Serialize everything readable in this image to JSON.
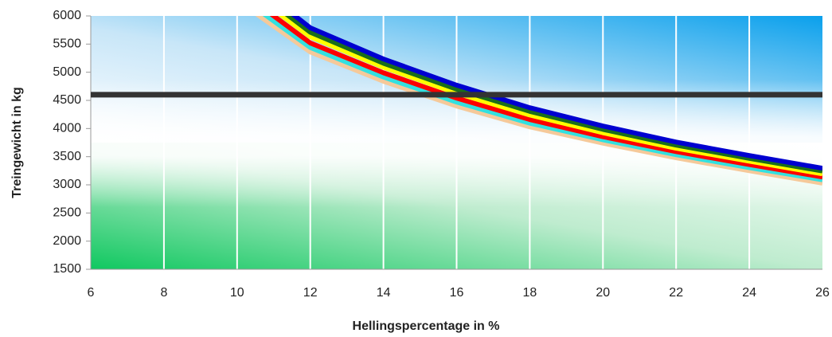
{
  "chart_data": {
    "type": "line",
    "x_label": "Hellingspercentage in %",
    "y_label": "Treingewicht in kg",
    "xlim": [
      6,
      26
    ],
    "xticks": [
      6,
      8,
      10,
      12,
      14,
      16,
      18,
      20,
      22,
      24,
      26
    ],
    "ylim": [
      1500,
      6000
    ],
    "yticks": [
      1500,
      2000,
      2500,
      3000,
      3500,
      4000,
      4500,
      5000,
      5500,
      6000
    ],
    "grid": true,
    "series": [
      {
        "color": "#f5c99a",
        "x": [
          10,
          12,
          14,
          16,
          18,
          20,
          22,
          24,
          26
        ],
        "values": [
          6280,
          5360,
          4840,
          4400,
          4030,
          3740,
          3480,
          3250,
          3030
        ]
      },
      {
        "color": "#33e0e0",
        "x": [
          10,
          12,
          14,
          16,
          18,
          20,
          22,
          24,
          26
        ],
        "values": [
          6380,
          5440,
          4915,
          4470,
          4095,
          3800,
          3535,
          3305,
          3090
        ]
      },
      {
        "color": "#ff0000",
        "x": [
          10,
          12,
          14,
          16,
          18,
          20,
          22,
          24,
          26
        ],
        "values": [
          6480,
          5520,
          4990,
          4540,
          4160,
          3855,
          3590,
          3360,
          3140
        ]
      },
      {
        "color": "#ffff00",
        "x": [
          10,
          12,
          14,
          16,
          18,
          20,
          22,
          24,
          26
        ],
        "values": [
          6600,
          5630,
          5090,
          4630,
          4240,
          3925,
          3650,
          3420,
          3195
        ]
      },
      {
        "color": "#1a6e1a",
        "x": [
          10,
          12,
          14,
          16,
          18,
          20,
          22,
          24,
          26
        ],
        "values": [
          6700,
          5710,
          5160,
          4700,
          4305,
          3985,
          3705,
          3470,
          3245
        ]
      },
      {
        "color": "#0000d0",
        "x": [
          10,
          12,
          14,
          16,
          18,
          20,
          22,
          24,
          26
        ],
        "values": [
          6800,
          5790,
          5235,
          4770,
          4370,
          4045,
          3760,
          3520,
          3295
        ]
      },
      {
        "color": "#333333",
        "x": [
          6,
          26
        ],
        "values": [
          4600,
          4600
        ]
      }
    ]
  }
}
